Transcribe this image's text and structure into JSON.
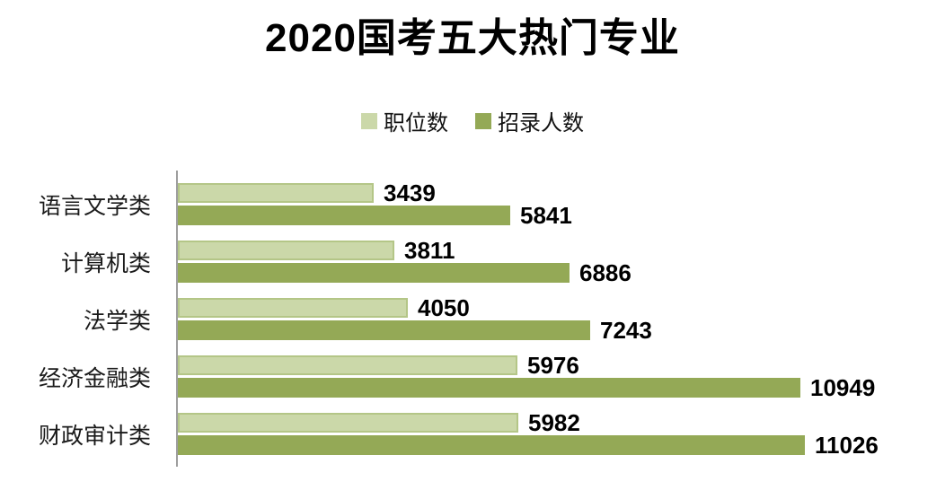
{
  "chart_data": {
    "type": "bar",
    "orientation": "horizontal",
    "title": "2020国考五大热门专业",
    "categories": [
      "语言文学类",
      "计算机类",
      "法学类",
      "经济金融类",
      "财政审计类"
    ],
    "series": [
      {
        "name": "职位数",
        "color": "#cbd8a9",
        "border_color": "#b4c687",
        "values": [
          3439,
          3811,
          4050,
          5976,
          5982
        ]
      },
      {
        "name": "招录人数",
        "color": "#94a956",
        "border_color": "#94a956",
        "values": [
          5841,
          6886,
          7243,
          10949,
          11026
        ]
      }
    ],
    "value_labels": true,
    "axis_max": 11026,
    "legend_position": "top-center",
    "grid": false,
    "axis_line_color": "#9e9e9e",
    "xlabel": "",
    "ylabel": ""
  }
}
